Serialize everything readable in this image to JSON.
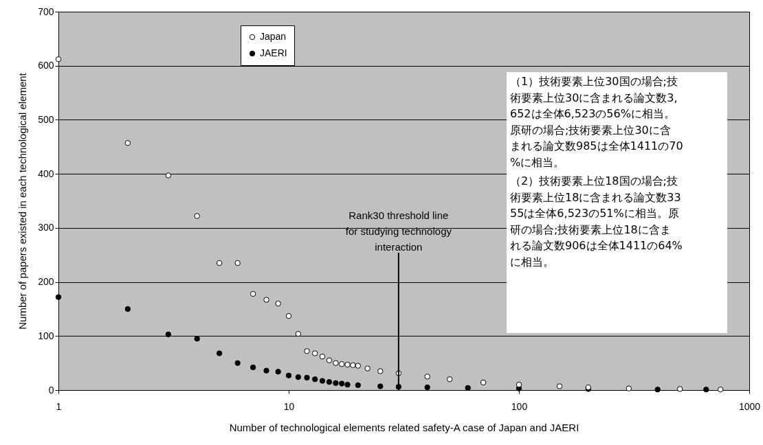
{
  "chart_data": {
    "type": "scatter",
    "xlabel": "Number of technological elements related safety-A case of Japan and JAERI",
    "ylabel": "Number of papers existed in each technological element",
    "log": "x",
    "xlim": [
      1,
      1000
    ],
    "xticks": [
      1,
      10,
      100,
      {
        "value": 1000,
        "label": "1000"
      }
    ],
    "ylim": [
      0,
      700
    ],
    "yticks": [
      0,
      100,
      200,
      300,
      400,
      500,
      600,
      700
    ],
    "grid": "y",
    "legend": "top left",
    "marker": "circle",
    "series": [
      {
        "name": "Japan",
        "color": "#ffffff",
        "x": [
          1,
          2,
          3,
          4,
          5,
          6,
          7,
          8,
          9,
          10,
          11,
          12,
          13,
          14,
          15,
          16,
          17,
          18,
          19,
          20,
          22,
          25,
          30,
          40,
          50,
          70,
          100,
          150,
          200,
          300,
          500,
          750
        ],
        "values": [
          612,
          457,
          397,
          322,
          235,
          235,
          178,
          167,
          160,
          137,
          104,
          72,
          68,
          62,
          55,
          50,
          48,
          47,
          46,
          45,
          40,
          35,
          31,
          25,
          20,
          14,
          10,
          7,
          5,
          3,
          2,
          1
        ]
      },
      {
        "name": "JAERI",
        "color": "#000000",
        "x": [
          1,
          2,
          3,
          4,
          5,
          6,
          7,
          8,
          9,
          10,
          11,
          12,
          13,
          14,
          15,
          16,
          17,
          18,
          20,
          25,
          30,
          40,
          60,
          100,
          200,
          400,
          650
        ],
        "values": [
          172,
          150,
          103,
          95,
          68,
          50,
          42,
          36,
          34,
          27,
          24,
          23,
          20,
          17,
          15,
          13,
          12,
          10,
          9,
          7,
          6,
          5,
          4,
          3,
          2,
          1,
          1
        ]
      }
    ],
    "ref_lines": [
      {
        "axis": "x",
        "value": 30,
        "label": "Rank30 threshold line\nfor studying technology\ninteraction",
        "color": "#000000"
      }
    ],
    "annotations": [
      "（1）技術要素上位30国の場合;技術要素上位30に含まれる論文数3,652は全体6,523の56%に相当。原研の場合;技術要素上位30に含まれる論文数985は全体1411の70%に相当。",
      "（2）技術要素上位18国の場合;技術要素上位18に含まれる論文数3355は全体6,523の51%に相当。原研の場合;技術要素上位18に含まれる論文数906は全体1411の64%に相当。"
    ]
  }
}
